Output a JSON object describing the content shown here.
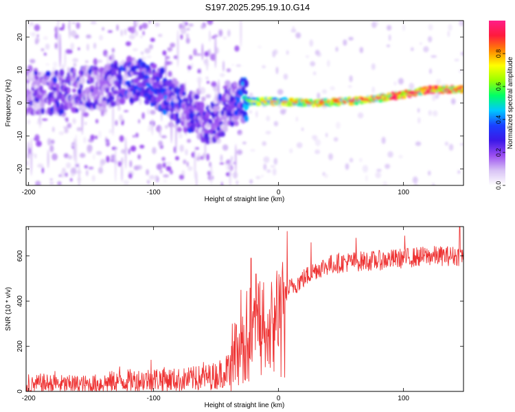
{
  "title": "S197.2025.295.19.10.G14",
  "chart_data": [
    {
      "type": "heatmap",
      "title": "S197.2025.295.19.10.G14",
      "xlabel": "Height of straight line (km)",
      "ylabel": "Frequency (Hz)",
      "xlim": [
        -202,
        148
      ],
      "ylim": [
        -25,
        25
      ],
      "xticks": [
        -200,
        -100,
        0,
        100
      ],
      "yticks": [
        -20,
        -10,
        0,
        10,
        20
      ],
      "colorbar": {
        "label": "Normalized spectral amplitude",
        "range": [
          0,
          1
        ],
        "ticks": [
          0.0,
          0.2,
          0.4,
          0.6,
          0.8
        ],
        "tick_labels": [
          "0.0",
          "0.2",
          "0.4",
          "0.6",
          "0.8"
        ],
        "colors": [
          "#ffffff",
          "#d8c2f5",
          "#9a4df0",
          "#3b18e8",
          "#1a40ff",
          "#00c8ff",
          "#00ff66",
          "#99ff00",
          "#ffff00",
          "#ff8800",
          "#ff1a3c",
          "#ff1e88"
        ]
      },
      "ridge": {
        "x": [
          -200,
          -180,
          -160,
          -140,
          -120,
          -100,
          -85,
          -70,
          -55,
          -40,
          -30,
          -22,
          -10,
          0,
          20,
          40,
          60,
          80,
          100,
          120,
          148
        ],
        "y": [
          3,
          3,
          4,
          5,
          7,
          6,
          1,
          -3,
          -6,
          -2,
          1,
          0.5,
          0.5,
          0.5,
          0,
          0.2,
          0.6,
          1.5,
          2.5,
          4,
          4.3
        ],
        "amplitude": [
          0.25,
          0.3,
          0.3,
          0.3,
          0.35,
          0.4,
          0.35,
          0.35,
          0.3,
          0.3,
          0.4,
          0.6,
          0.7,
          0.7,
          0.75,
          0.75,
          0.8,
          0.85,
          0.9,
          0.9,
          0.85
        ]
      }
    },
    {
      "type": "line",
      "xlabel": "Height of straight line (km)",
      "ylabel": "SNR (10 * v/v)",
      "xlim": [
        -202,
        148
      ],
      "ylim": [
        0,
        730
      ],
      "xticks": [
        -200,
        -100,
        0,
        100
      ],
      "yticks": [
        0,
        200,
        400,
        600
      ],
      "series": [
        {
          "name": "SNR",
          "color": "#ee3333",
          "x": [
            -202,
            -190,
            -170,
            -150,
            -130,
            -110,
            -95,
            -80,
            -60,
            -50,
            -40,
            -35,
            -30,
            -25,
            -20,
            -15,
            -10,
            -5,
            0,
            5,
            10,
            20,
            30,
            40,
            50,
            60,
            80,
            100,
            120,
            148
          ],
          "y": [
            20,
            35,
            30,
            30,
            45,
            50,
            55,
            50,
            60,
            70,
            100,
            180,
            250,
            320,
            330,
            340,
            330,
            380,
            420,
            440,
            460,
            500,
            540,
            560,
            570,
            575,
            580,
            590,
            600,
            600
          ],
          "peak_x": [
            -200,
            -179,
            -165,
            -127,
            -102,
            -92,
            -66,
            -60,
            -37,
            -30,
            -22,
            -18,
            -13,
            7,
            26,
            62,
            101,
            145
          ],
          "peak_y": [
            75,
            90,
            70,
            110,
            140,
            100,
            110,
            130,
            300,
            450,
            590,
            520,
            450,
            710,
            660,
            680,
            690,
            740
          ]
        }
      ]
    }
  ]
}
